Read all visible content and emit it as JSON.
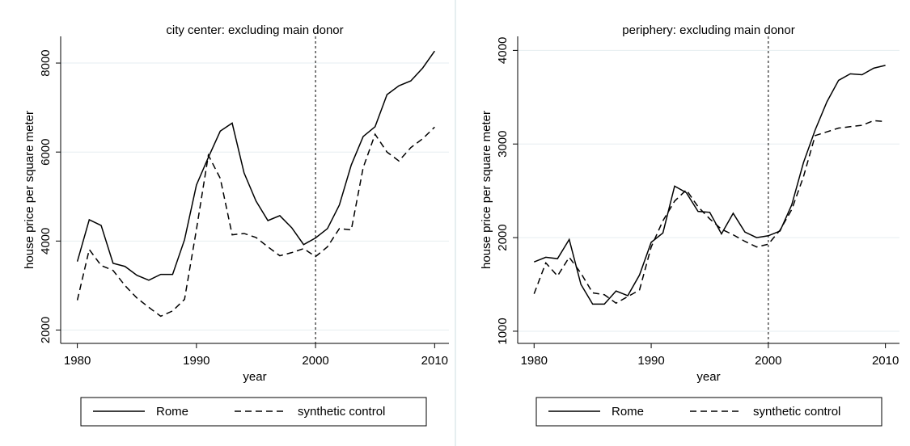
{
  "chart_data": [
    {
      "type": "line",
      "title": "city center: excluding main donor",
      "x_label": "year",
      "y_label": "house price per square meter",
      "x": [
        1980,
        1981,
        1982,
        1983,
        1984,
        1985,
        1986,
        1987,
        1988,
        1989,
        1990,
        1991,
        1992,
        1993,
        1994,
        1995,
        1996,
        1997,
        1998,
        1999,
        2000,
        2001,
        2002,
        2003,
        2004,
        2005,
        2006,
        2007,
        2008,
        2009,
        2010
      ],
      "series": [
        {
          "name": "Rome",
          "color": "#000000",
          "style": "solid",
          "values": [
            3540,
            4480,
            4350,
            3500,
            3430,
            3230,
            3120,
            3250,
            3250,
            4030,
            5260,
            5880,
            6470,
            6650,
            5530,
            4900,
            4460,
            4570,
            4300,
            3920,
            4070,
            4280,
            4810,
            5710,
            6350,
            6570,
            7290,
            7490,
            7600,
            7890,
            8270
          ]
        },
        {
          "name": "synthetic control",
          "color": "#000000",
          "style": "dashed",
          "values": [
            2670,
            3810,
            3450,
            3340,
            3000,
            2720,
            2510,
            2310,
            2430,
            2690,
            4260,
            5930,
            5410,
            4140,
            4170,
            4080,
            3870,
            3670,
            3740,
            3830,
            3650,
            3870,
            4280,
            4250,
            5650,
            6400,
            6000,
            5800,
            6100,
            6300,
            6560
          ]
        }
      ],
      "vline": 2000,
      "xlim": [
        1978.6,
        2011.2
      ],
      "xticks": [
        1980,
        1990,
        2000,
        2010
      ],
      "ylim": [
        1700,
        8600
      ],
      "yticks": [
        2000,
        4000,
        6000,
        8000
      ],
      "grid": true
    },
    {
      "type": "line",
      "title": "periphery: excluding main donor",
      "x_label": "year",
      "y_label": "house price per square meter",
      "x": [
        1980,
        1981,
        1982,
        1983,
        1984,
        1985,
        1986,
        1987,
        1988,
        1989,
        1990,
        1991,
        1992,
        1993,
        1994,
        1995,
        1996,
        1997,
        1998,
        1999,
        2000,
        2001,
        2002,
        2003,
        2004,
        2005,
        2006,
        2007,
        2008,
        2009,
        2010
      ],
      "series": [
        {
          "name": "Rome",
          "color": "#000000",
          "style": "solid",
          "values": [
            1740,
            1790,
            1775,
            1980,
            1500,
            1290,
            1290,
            1430,
            1380,
            1600,
            1950,
            2050,
            2550,
            2480,
            2280,
            2270,
            2040,
            2260,
            2060,
            2000,
            2020,
            2070,
            2350,
            2800,
            3150,
            3450,
            3680,
            3750,
            3740,
            3810,
            3840
          ]
        },
        {
          "name": "synthetic control",
          "color": "#000000",
          "style": "dashed",
          "values": [
            1400,
            1730,
            1590,
            1790,
            1620,
            1410,
            1390,
            1300,
            1370,
            1440,
            1900,
            2180,
            2390,
            2510,
            2330,
            2200,
            2090,
            2030,
            1960,
            1900,
            1930,
            2080,
            2300,
            2650,
            3090,
            3130,
            3170,
            3185,
            3200,
            3250,
            3240
          ]
        }
      ],
      "vline": 2000,
      "xlim": [
        1978.6,
        2011.2
      ],
      "xticks": [
        1980,
        1990,
        2000,
        2010
      ],
      "ylim": [
        870,
        4150
      ],
      "yticks": [
        1000,
        2000,
        3000,
        4000
      ],
      "grid": true
    }
  ]
}
